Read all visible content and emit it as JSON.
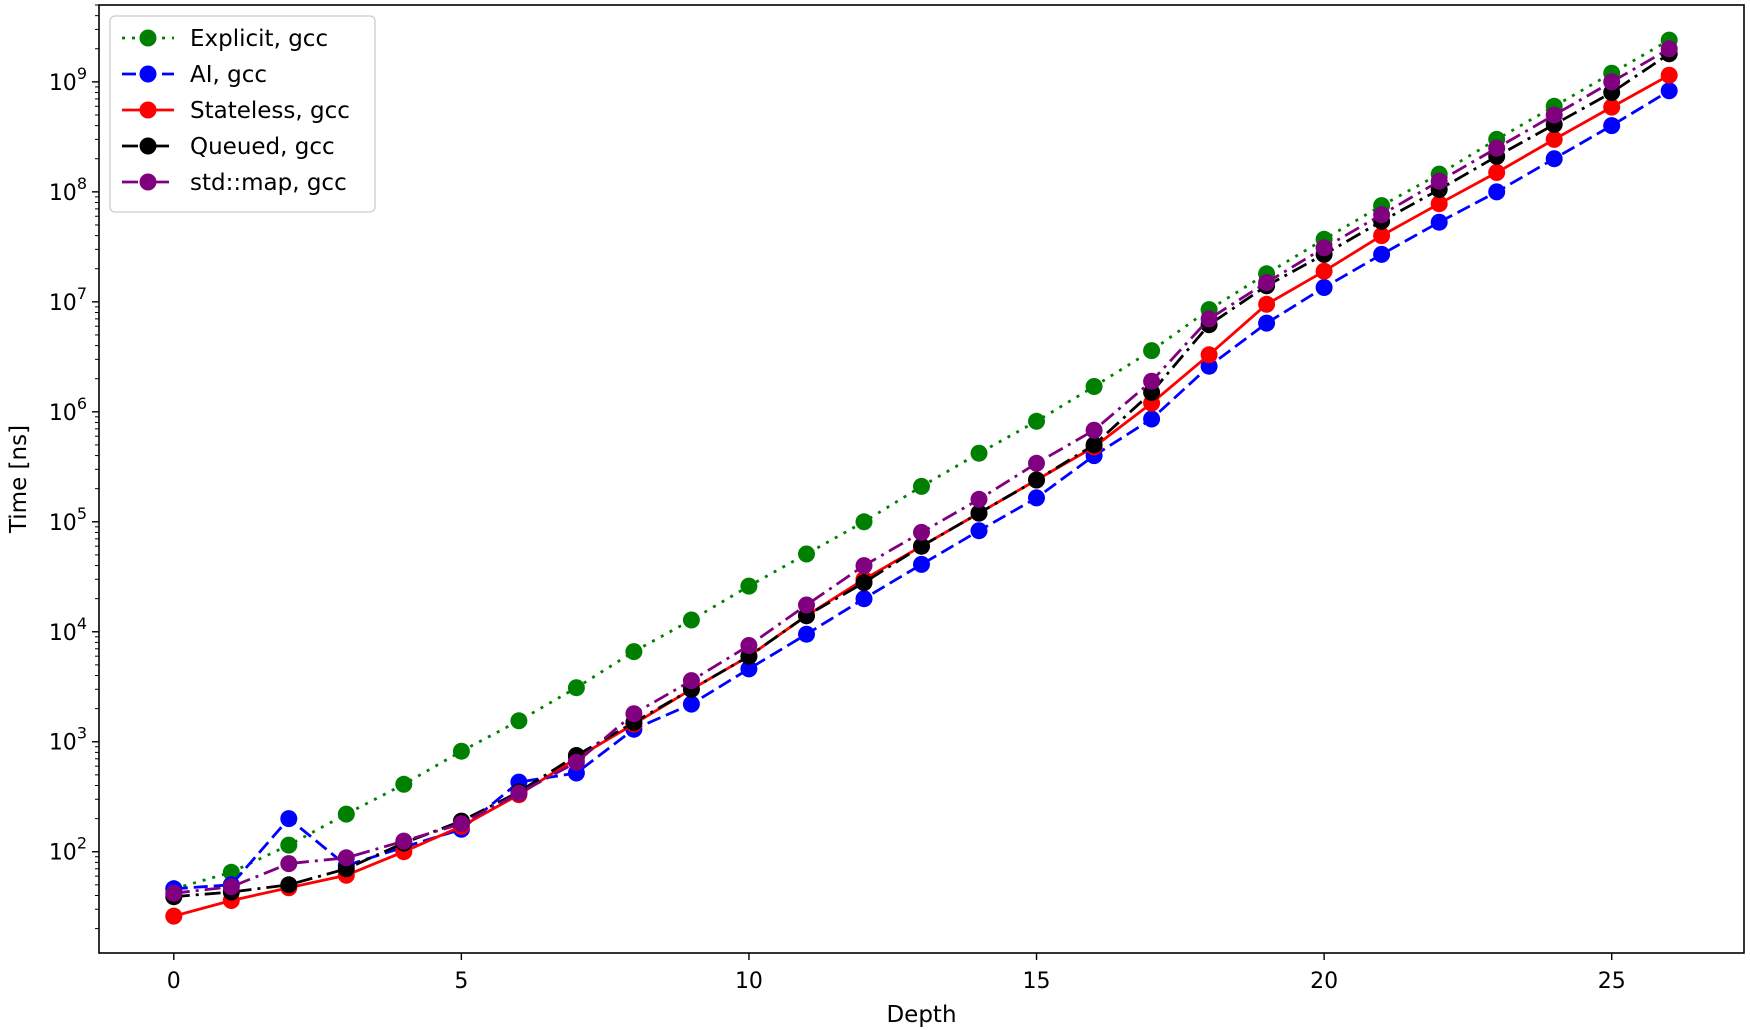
{
  "chart_data": {
    "type": "line",
    "xlabel": "Depth",
    "ylabel": "Time [ns]",
    "xlim": [
      -1.3,
      27.3
    ],
    "ylim": [
      12,
      5000000000
    ],
    "yscale": "log",
    "grid": false,
    "legend_position": "top-left",
    "x_ticks": [
      0,
      5,
      10,
      15,
      20,
      25
    ],
    "y_ticks": [
      {
        "value": 100,
        "base": "10",
        "exp": "2"
      },
      {
        "value": 1000,
        "base": "10",
        "exp": "3"
      },
      {
        "value": 10000,
        "base": "10",
        "exp": "4"
      },
      {
        "value": 100000,
        "base": "10",
        "exp": "5"
      },
      {
        "value": 1000000,
        "base": "10",
        "exp": "6"
      },
      {
        "value": 10000000,
        "base": "10",
        "exp": "7"
      },
      {
        "value": 100000000,
        "base": "10",
        "exp": "8"
      },
      {
        "value": 1000000000,
        "base": "10",
        "exp": "9"
      }
    ],
    "x": [
      0,
      1,
      2,
      3,
      4,
      5,
      6,
      7,
      8,
      9,
      10,
      11,
      12,
      13,
      14,
      15,
      16,
      17,
      18,
      19,
      20,
      21,
      22,
      23,
      24,
      25,
      26
    ],
    "series": [
      {
        "name": "Explicit, gcc",
        "color": "#008000",
        "dash": "dotted",
        "values": [
          46,
          65,
          115,
          220,
          410,
          820,
          1550,
          3100,
          6600,
          12800,
          26000,
          51000,
          100000,
          210000,
          420000,
          820000,
          1700000,
          3600000,
          8500000,
          18000000,
          37000000,
          75000000,
          145000000,
          300000000,
          600000000,
          1200000000,
          2400000000
        ]
      },
      {
        "name": "AI, gcc",
        "color": "#0000ff",
        "dash": "dashed",
        "values": [
          46,
          50,
          200,
          75,
          110,
          160,
          430,
          520,
          1300,
          2200,
          4600,
          9500,
          20000,
          41000,
          83000,
          165000,
          400000,
          860000,
          2600000,
          6400000,
          13500000,
          27000000,
          53000000,
          100000000,
          200000000,
          400000000,
          830000000
        ]
      },
      {
        "name": "Stateless, gcc",
        "color": "#ff0000",
        "dash": "solid",
        "values": [
          26,
          36,
          47,
          61,
          100,
          170,
          330,
          710,
          1450,
          3000,
          6000,
          14000,
          30000,
          60000,
          120000,
          240000,
          480000,
          1200000,
          3300000,
          9500000,
          19000000,
          40000000,
          78000000,
          150000000,
          300000000,
          590000000,
          1150000000
        ]
      },
      {
        "name": "Queued, gcc",
        "color": "#000000",
        "dash": "dashdot",
        "values": [
          39,
          43,
          50,
          70,
          120,
          190,
          350,
          750,
          1500,
          3000,
          6000,
          14000,
          28000,
          60000,
          120000,
          240000,
          500000,
          1500000,
          6200000,
          14000000,
          27000000,
          54000000,
          105000000,
          210000000,
          410000000,
          800000000,
          1800000000
        ]
      },
      {
        "name": "std::map, gcc",
        "color": "#800080",
        "dash": "dashdot",
        "values": [
          42,
          48,
          78,
          88,
          125,
          180,
          340,
          650,
          1800,
          3600,
          7500,
          17500,
          40000,
          80000,
          160000,
          340000,
          680000,
          1900000,
          7000000,
          15000000,
          31000000,
          62000000,
          125000000,
          250000000,
          500000000,
          1000000000,
          2000000000
        ]
      }
    ]
  }
}
